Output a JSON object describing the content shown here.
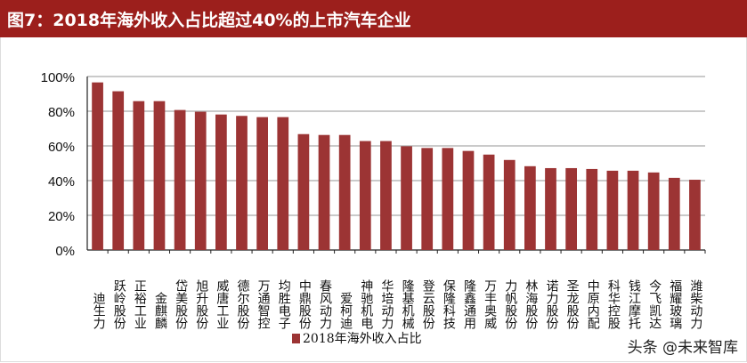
{
  "title": "图7：2018年海外收入占比超过40%的上市汽车企业",
  "watermark": "头条 @未来智库",
  "chart_data": {
    "type": "bar",
    "title": "图7：2018年海外收入占比超过40%的上市汽车企业",
    "categories": [
      "迪生力",
      "跃岭股份",
      "正裕工业",
      "金麒麟",
      "岱美股份",
      "旭升股份",
      "威唐工业",
      "德尔股份",
      "万通智控",
      "均胜电子",
      "中鼎股份",
      "春风动力",
      "爱柯迪",
      "神驰机电",
      "华培动力",
      "隆基机械",
      "登云股份",
      "保隆科技",
      "隆鑫通用",
      "万丰奥威",
      "力帆股份",
      "林海股份",
      "诺力股份",
      "圣龙股份",
      "中原内配",
      "科华控股",
      "钱江摩托",
      "今飞凯达",
      "福耀玻璃",
      "潍柴动力"
    ],
    "series": [
      {
        "name": "2018年海外收入占比",
        "values": [
          96.6,
          91.5,
          85.8,
          85.8,
          80.7,
          79.7,
          78.1,
          77.3,
          76.6,
          76.6,
          66.8,
          66.3,
          66.3,
          62.8,
          62.8,
          59.8,
          58.8,
          58.8,
          57.1,
          55.0,
          51.9,
          48.3,
          47.2,
          47.2,
          46.7,
          45.7,
          45.7,
          44.7,
          41.6,
          40.5
        ],
        "color": "#9c3434"
      }
    ],
    "yticks": [
      "0%",
      "20%",
      "40%",
      "60%",
      "80%",
      "100%"
    ],
    "ylim": [
      0,
      100
    ],
    "grid": true,
    "legend": "bottom"
  }
}
